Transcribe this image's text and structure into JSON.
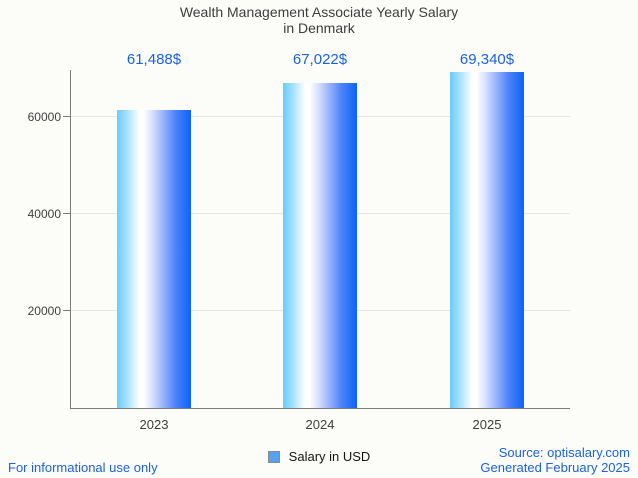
{
  "title": {
    "line1": "Wealth Management Associate Yearly Salary",
    "line2": "in Denmark"
  },
  "chart_data": {
    "type": "bar",
    "title": "Wealth Management Associate Yearly Salary in Denmark",
    "categories": [
      "2023",
      "2024",
      "2025"
    ],
    "values": [
      61488,
      67022,
      69340
    ],
    "value_labels": [
      "61,488$",
      "67,022$",
      "69,340$"
    ],
    "series_name": "Salary in USD",
    "xlabel": "",
    "ylabel": "",
    "ylim": [
      0,
      69700
    ],
    "yticks": [
      20000,
      40000,
      60000
    ],
    "ytick_labels": [
      "20000",
      "40000",
      "60000"
    ],
    "grid": true,
    "legend_position": "bottom"
  },
  "legend": {
    "label": "Salary in USD",
    "marker_color": "#58a1ef"
  },
  "footer": {
    "left": "For informational use only",
    "source": "Source: optisalary.com",
    "generated": "Generated February 2025"
  },
  "colors": {
    "accent_blue": "#1a62e0",
    "bar_gradient_left": "#69ccfb",
    "bar_gradient_mid": "#ffffff",
    "bar_gradient_right": "#0b63f8",
    "axis": "#7a7a7a",
    "gridline": "#e6e6e4",
    "text": "#3d3d3d",
    "background": "#fcfcf9"
  }
}
